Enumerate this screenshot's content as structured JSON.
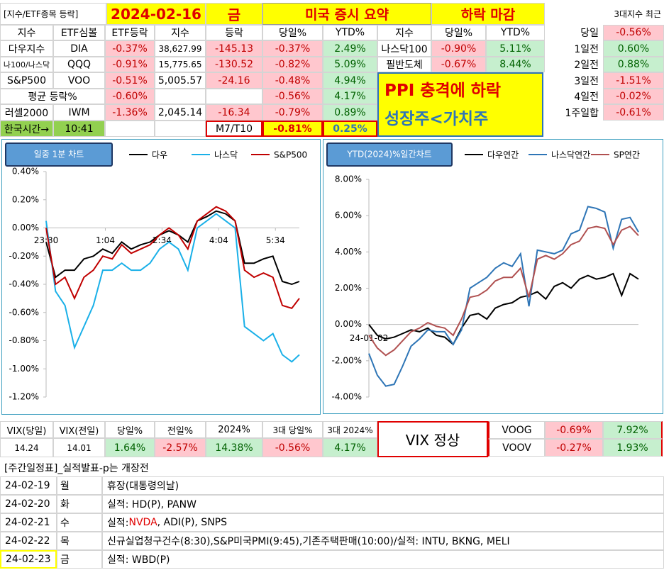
{
  "header": {
    "label": "[지수/ETF종목 등락]",
    "date": "2024-02-16",
    "weekday": "금",
    "title": "미국 증시 요약",
    "verdict": "하락 마감",
    "recent_title": "3대지수 최근"
  },
  "table": {
    "columns": [
      "지수",
      "ETF심볼",
      "ETF등락",
      "지수",
      "등락",
      "당일%",
      "YTD%",
      "지수",
      "당일%",
      "YTD%"
    ],
    "rows": [
      [
        "다우지수",
        "DIA",
        "-0.37%",
        "38,627.99",
        "-145.13",
        "-0.37%",
        "2.49%"
      ],
      [
        "나100/나스닥",
        "QQQ",
        "-0.91%",
        "15,775.65",
        "-130.52",
        "-0.82%",
        "5.09%"
      ],
      [
        "S&P500",
        "VOO",
        "-0.51%",
        "5,005.57",
        "-24.16",
        "-0.48%",
        "4.94%"
      ],
      [
        "평균 등락%",
        null,
        "-0.60%",
        null,
        null,
        "-0.56%",
        "4.17%"
      ],
      [
        "러셀2000",
        "IWM",
        "-1.36%",
        "2,045.14",
        "-16.34",
        "-0.79%",
        "0.89%"
      ],
      [
        "한국시간→",
        "10:41",
        null,
        null,
        "M7/T10",
        "-0.81%",
        "0.25%"
      ]
    ],
    "side_rows": [
      [
        "나스닥100",
        "-0.90%",
        "5.11%"
      ],
      [
        "필반도체",
        "-0.67%",
        "8.44%"
      ]
    ]
  },
  "note": {
    "line1": "PPI 충격에 하락",
    "line2": "성장주<가치주"
  },
  "recent": [
    {
      "label": "당일",
      "value": "-0.56%"
    },
    {
      "label": "1일전",
      "value": "0.60%"
    },
    {
      "label": "2일전",
      "value": "0.88%"
    },
    {
      "label": "3일전",
      "value": "-1.51%"
    },
    {
      "label": "4일전",
      "value": "-0.02%"
    },
    {
      "label": "1주일합",
      "value": "-0.61%"
    }
  ],
  "vix": {
    "columns": [
      "VIX(당일)",
      "VIX(전일)",
      "당일%",
      "전일%",
      "2024%",
      "3대 당일%",
      "3대 2024%"
    ],
    "values": [
      "14.24",
      "14.01",
      "1.64%",
      "-2.57%",
      "14.38%",
      "-0.56%",
      "4.17%"
    ],
    "status": "VIX 정상",
    "etfs": [
      {
        "name": "VOOG",
        "day": "-0.69%",
        "ytd": "7.92%"
      },
      {
        "name": "VOOV",
        "day": "-0.27%",
        "ytd": "1.93%"
      }
    ]
  },
  "schedule": {
    "title": "[주간일정표]_실적발표-p는 개장전",
    "rows": [
      {
        "date": "24-02-19",
        "day": "월",
        "parts": [
          "휴장(대통령의날)"
        ]
      },
      {
        "date": "24-02-20",
        "day": "화",
        "parts": [
          "실적: HD(P), PANW"
        ]
      },
      {
        "date": "24-02-21",
        "day": "수",
        "parts": [
          "실적: ",
          "NVDA",
          ", ADI(P), SNPS"
        ]
      },
      {
        "date": "24-02-22",
        "day": "목",
        "parts": [
          "신규실업청구건수(8:30),S&P미국PMI(9:45),기존주택판매(10:00)/실적: INTU, BKNG, MELI"
        ]
      },
      {
        "date": "24-02-23",
        "day": "금",
        "parts": [
          "실적: WBD(P)"
        ]
      }
    ]
  },
  "chart_data": [
    {
      "type": "line",
      "title": "일중 1분 차트",
      "x": [
        0,
        15,
        30,
        45,
        60,
        75,
        90,
        105,
        120,
        135,
        150,
        165,
        180,
        195,
        210,
        225,
        240,
        255,
        270,
        285,
        300,
        315,
        330,
        345,
        360,
        375,
        390,
        402
      ],
      "xlim": [
        0,
        402
      ],
      "xticks": [
        {
          "value": 0,
          "label": "23:30"
        },
        {
          "value": 94,
          "label": "1:04"
        },
        {
          "value": 184,
          "label": "2:34"
        },
        {
          "value": 274,
          "label": "4:04"
        },
        {
          "value": 364,
          "label": "5:34"
        }
      ],
      "ylim": [
        -1.2,
        0.4
      ],
      "yticks": [
        {
          "value": 0.4,
          "label": "0.40%"
        },
        {
          "value": 0.2,
          "label": "0.20%"
        },
        {
          "value": 0,
          "label": "0.00%"
        },
        {
          "value": -0.2,
          "label": "-0.20%"
        },
        {
          "value": -0.4,
          "label": "-0.40%"
        },
        {
          "value": -0.6,
          "label": "-0.60%"
        },
        {
          "value": -0.8,
          "label": "-0.80%"
        },
        {
          "value": -1.0,
          "label": "-1.00%"
        },
        {
          "value": -1.2,
          "label": "-1.20%"
        }
      ],
      "grid": false,
      "series": [
        {
          "name": "다우",
          "color": "#000000",
          "values": [
            -0.1,
            -0.35,
            -0.3,
            -0.3,
            -0.22,
            -0.2,
            -0.15,
            -0.18,
            -0.1,
            -0.15,
            -0.12,
            -0.1,
            -0.05,
            -0.02,
            -0.05,
            -0.1,
            0.05,
            0.08,
            0.12,
            0.1,
            0.05,
            -0.25,
            -0.25,
            -0.22,
            -0.2,
            -0.38,
            -0.4,
            -0.38
          ]
        },
        {
          "name": "나스닥",
          "color": "#1ab0e8",
          "values": [
            0.05,
            -0.45,
            -0.55,
            -0.85,
            -0.7,
            -0.55,
            -0.3,
            -0.3,
            -0.25,
            -0.3,
            -0.3,
            -0.25,
            -0.15,
            -0.1,
            -0.15,
            -0.3,
            0.0,
            0.05,
            0.1,
            0.05,
            0.0,
            -0.7,
            -0.75,
            -0.8,
            -0.75,
            -0.9,
            -0.95,
            -0.9
          ]
        },
        {
          "name": "S&P500",
          "color": "#c00000",
          "values": [
            0.0,
            -0.4,
            -0.35,
            -0.5,
            -0.35,
            -0.3,
            -0.2,
            -0.22,
            -0.12,
            -0.18,
            -0.15,
            -0.12,
            -0.05,
            0.0,
            -0.05,
            -0.15,
            0.05,
            0.1,
            0.15,
            0.12,
            0.05,
            -0.3,
            -0.35,
            -0.32,
            -0.35,
            -0.55,
            -0.57,
            -0.5
          ]
        }
      ]
    },
    {
      "type": "line",
      "title": "YTD(2024)%일간차트",
      "categories": [
        "24-01-02",
        null,
        null,
        null,
        null,
        null,
        null,
        null,
        null,
        null,
        null,
        null,
        null,
        null,
        null,
        null,
        null,
        null,
        null,
        null,
        null,
        null,
        null,
        null,
        null,
        null,
        null,
        null,
        null,
        null,
        null,
        null,
        null
      ],
      "ylim": [
        -4,
        8
      ],
      "yticks": [
        {
          "value": 8,
          "label": "8.00%"
        },
        {
          "value": 6,
          "label": "6.00%"
        },
        {
          "value": 4,
          "label": "4.00%"
        },
        {
          "value": 2,
          "label": "2.00%"
        },
        {
          "value": 0,
          "label": "0.00%"
        },
        {
          "value": -2,
          "label": "-2.00%"
        },
        {
          "value": -4,
          "label": "-4.00%"
        }
      ],
      "grid": false,
      "series": [
        {
          "name": "다우연간",
          "color": "#000000",
          "values": [
            0.0,
            -0.6,
            -0.8,
            -0.7,
            -0.5,
            -0.3,
            -0.4,
            -0.2,
            -0.6,
            -0.7,
            -1.1,
            -0.2,
            0.5,
            0.6,
            0.3,
            0.9,
            1.1,
            1.2,
            1.5,
            1.6,
            1.8,
            1.4,
            2.1,
            2.3,
            2.0,
            2.5,
            2.7,
            2.5,
            2.6,
            2.8,
            1.6,
            2.8,
            2.5
          ]
        },
        {
          "name": "나스닥연간",
          "color": "#2e75b6",
          "values": [
            -1.6,
            -2.8,
            -3.4,
            -3.3,
            -2.3,
            -1.2,
            -0.8,
            -0.3,
            -0.4,
            -0.4,
            -1.1,
            -0.3,
            2.0,
            2.3,
            2.6,
            3.1,
            3.4,
            3.2,
            3.9,
            1.0,
            4.1,
            4.0,
            3.9,
            4.1,
            5.0,
            5.2,
            6.5,
            6.4,
            6.2,
            4.2,
            5.8,
            5.9,
            5.1
          ]
        },
        {
          "name": "SP연간",
          "color": "#b05050",
          "values": [
            -0.6,
            -1.3,
            -1.7,
            -1.4,
            -0.9,
            -0.4,
            -0.2,
            0.1,
            -0.1,
            -0.2,
            -0.6,
            0.3,
            1.5,
            1.6,
            1.9,
            2.4,
            2.6,
            2.6,
            3.1,
            1.5,
            3.6,
            3.8,
            3.6,
            3.9,
            4.4,
            4.6,
            5.3,
            5.4,
            5.3,
            4.4,
            5.2,
            5.4,
            4.9
          ]
        }
      ]
    }
  ]
}
